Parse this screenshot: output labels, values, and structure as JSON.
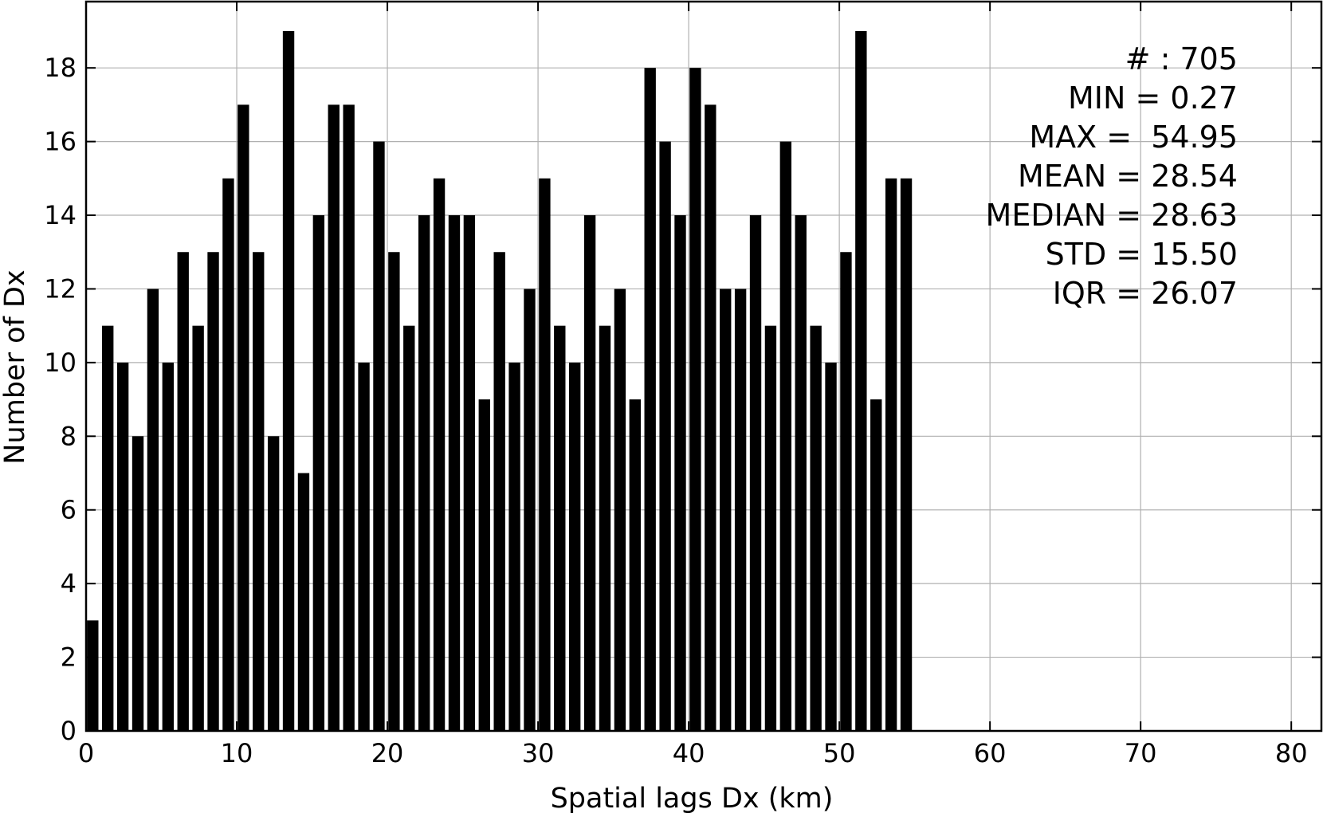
{
  "chart_data": {
    "type": "bar",
    "bin_width": 1,
    "x_start": 0,
    "values": [
      3,
      11,
      10,
      8,
      12,
      10,
      13,
      11,
      13,
      15,
      17,
      13,
      8,
      19,
      7,
      14,
      17,
      17,
      10,
      16,
      13,
      11,
      14,
      15,
      14,
      14,
      9,
      13,
      10,
      12,
      15,
      11,
      10,
      14,
      11,
      12,
      9,
      18,
      16,
      14,
      18,
      17,
      12,
      12,
      14,
      11,
      16,
      14,
      11,
      10,
      13,
      19,
      9,
      15,
      15
    ],
    "xlabel": "Spatial lags Dx (km)",
    "ylabel": "Number of Dx",
    "xlim": [
      0,
      82
    ],
    "ylim": [
      0,
      19.8
    ],
    "xticks": [
      0,
      10,
      20,
      30,
      40,
      50,
      60,
      70,
      80
    ],
    "yticks": [
      0,
      2,
      4,
      6,
      8,
      10,
      12,
      14,
      16,
      18
    ],
    "grid": true,
    "bar_color": "#000000",
    "stats": [
      "# : 705",
      "MIN = 0.27",
      "MAX =  54.95",
      "MEAN = 28.54",
      "MEDIAN = 28.63",
      "STD = 15.50",
      "IQR = 26.07"
    ]
  }
}
